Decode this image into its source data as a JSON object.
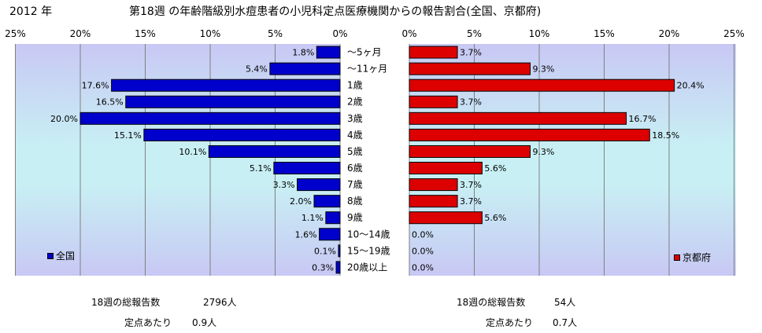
{
  "header": {
    "year": "2012 年",
    "title": "第18週 の年齢階級別水痘患者の小児科定点医療機関からの報告割合(全国、京都府)"
  },
  "chart_data": [
    {
      "type": "bar",
      "orientation": "horizontal",
      "direction": "right-to-left",
      "series_name": "全国",
      "unit": "%",
      "xlim": [
        0,
        25
      ],
      "ticks": [
        "25%",
        "20%",
        "15%",
        "10%",
        "5%",
        "0%"
      ],
      "categories": [
        "〜5ヶ月",
        "〜11ヶ月",
        "1歳",
        "2歳",
        "3歳",
        "4歳",
        "5歳",
        "6歳",
        "7歳",
        "8歳",
        "9歳",
        "10〜14歳",
        "15〜19歳",
        "20歳以上"
      ],
      "values": [
        1.8,
        5.4,
        17.6,
        16.5,
        20.0,
        15.1,
        10.1,
        5.1,
        3.3,
        2.0,
        1.1,
        1.6,
        0.1,
        0.3
      ],
      "labels": [
        "1.8%",
        "5.4%",
        "17.6%",
        "16.5%",
        "20.0%",
        "15.1%",
        "10.1%",
        "5.1%",
        "3.3%",
        "2.0%",
        "1.1%",
        "1.6%",
        "0.1%",
        "0.3%"
      ],
      "color": "#0000cc",
      "legend": "全国",
      "legend_position": "bottom-left",
      "grid": true
    },
    {
      "type": "bar",
      "orientation": "horizontal",
      "series_name": "京都府",
      "unit": "%",
      "xlim": [
        0,
        25
      ],
      "ticks": [
        "0%",
        "5%",
        "10%",
        "15%",
        "20%",
        "25%"
      ],
      "categories": [
        "〜5ヶ月",
        "〜11ヶ月",
        "1歳",
        "2歳",
        "3歳",
        "4歳",
        "5歳",
        "6歳",
        "7歳",
        "8歳",
        "9歳",
        "10〜14歳",
        "15〜19歳",
        "20歳以上"
      ],
      "values": [
        3.7,
        9.3,
        20.4,
        3.7,
        16.7,
        18.5,
        9.3,
        5.6,
        3.7,
        3.7,
        5.6,
        0.0,
        0.0,
        0.0
      ],
      "labels": [
        "3.7%",
        "9.3%",
        "20.4%",
        "3.7%",
        "16.7%",
        "18.5%",
        "9.3%",
        "5.6%",
        "3.7%",
        "3.7%",
        "5.6%",
        "0.0%",
        "0.0%",
        "0.0%"
      ],
      "color": "#dd0000",
      "legend": "京都府",
      "legend_position": "bottom-right",
      "grid": true
    }
  ],
  "stats": {
    "national": {
      "reports_label": "18週の総報告数",
      "reports_value": "2796人",
      "per_site_label": "定点あたり",
      "per_site_value": "0.9人"
    },
    "kyoto": {
      "reports_label": "18週の総報告数",
      "reports_value": "54人",
      "per_site_label": "定点あたり",
      "per_site_value": "0.7人"
    }
  }
}
